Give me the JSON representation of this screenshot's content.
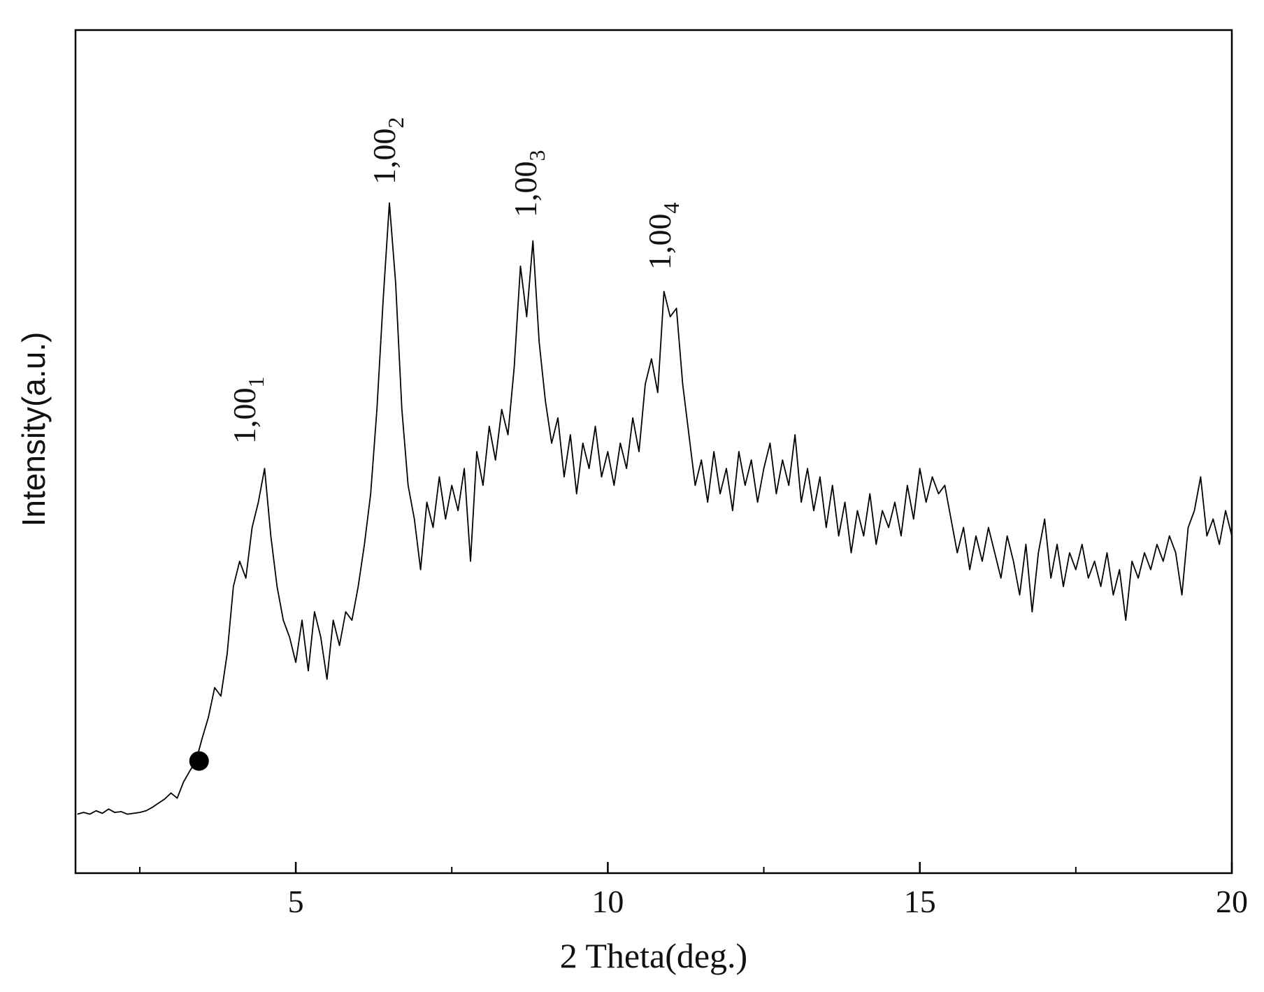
{
  "chart_data": {
    "type": "line",
    "xlabel": "2 Theta(deg.)",
    "ylabel": "Intensity(a.u.)",
    "xlim": [
      1.47,
      20
    ],
    "ylim": [
      0,
      100
    ],
    "xticks": [
      5,
      10,
      15,
      20
    ],
    "xminor_ticks": [
      2.5,
      7.5,
      12.5,
      17.5
    ],
    "color": "#000000",
    "x": [
      1.5,
      1.6,
      1.7,
      1.8,
      1.9,
      2.0,
      2.1,
      2.2,
      2.3,
      2.4,
      2.5,
      2.6,
      2.7,
      2.8,
      2.9,
      3.0,
      3.1,
      3.2,
      3.3,
      3.4,
      3.5,
      3.6,
      3.7,
      3.8,
      3.9,
      4.0,
      4.1,
      4.2,
      4.3,
      4.4,
      4.5,
      4.6,
      4.7,
      4.8,
      4.9,
      5.0,
      5.1,
      5.2,
      5.3,
      5.4,
      5.5,
      5.6,
      5.7,
      5.8,
      5.9,
      6.0,
      6.1,
      6.2,
      6.3,
      6.4,
      6.5,
      6.6,
      6.7,
      6.8,
      6.9,
      7.0,
      7.1,
      7.2,
      7.3,
      7.4,
      7.5,
      7.6,
      7.7,
      7.8,
      7.9,
      8.0,
      8.1,
      8.2,
      8.3,
      8.4,
      8.5,
      8.6,
      8.7,
      8.8,
      8.9,
      9.0,
      9.1,
      9.2,
      9.3,
      9.4,
      9.5,
      9.6,
      9.7,
      9.8,
      9.9,
      10.0,
      10.1,
      10.2,
      10.3,
      10.4,
      10.5,
      10.6,
      10.7,
      10.8,
      10.9,
      11.0,
      11.1,
      11.2,
      11.3,
      11.4,
      11.5,
      11.6,
      11.7,
      11.8,
      11.9,
      12.0,
      12.1,
      12.2,
      12.3,
      12.4,
      12.5,
      12.6,
      12.7,
      12.8,
      12.9,
      13.0,
      13.1,
      13.2,
      13.3,
      13.4,
      13.5,
      13.6,
      13.7,
      13.8,
      13.9,
      14.0,
      14.1,
      14.2,
      14.3,
      14.4,
      14.5,
      14.6,
      14.7,
      14.8,
      14.9,
      15.0,
      15.1,
      15.2,
      15.3,
      15.4,
      15.5,
      15.6,
      15.7,
      15.8,
      15.9,
      16.0,
      16.1,
      16.2,
      16.3,
      16.4,
      16.5,
      16.6,
      16.7,
      16.8,
      16.9,
      17.0,
      17.1,
      17.2,
      17.3,
      17.4,
      17.5,
      17.6,
      17.7,
      17.8,
      17.9,
      18.0,
      18.1,
      18.2,
      18.3,
      18.4,
      18.5,
      18.6,
      18.7,
      18.8,
      18.9,
      19.0,
      19.1,
      19.2,
      19.3,
      19.4,
      19.5,
      19.6,
      19.7,
      19.8,
      19.9,
      20.0
    ],
    "values": [
      7,
      7.2,
      7,
      7.4,
      7.1,
      7.6,
      7.2,
      7.3,
      7,
      7.1,
      7.2,
      7.4,
      7.8,
      8.3,
      8.8,
      9.5,
      8.9,
      10.8,
      12.1,
      13.3,
      16,
      18.5,
      22,
      21,
      26,
      34,
      37,
      35,
      41,
      44,
      48,
      40,
      34,
      30,
      28,
      25,
      30,
      24,
      31,
      28,
      23,
      30,
      27,
      31,
      30,
      34,
      39,
      45,
      55,
      68,
      79.5,
      70,
      55,
      46,
      42,
      36,
      44,
      41,
      47,
      42,
      46,
      43,
      48,
      37,
      50,
      46,
      53,
      49,
      55,
      52,
      60,
      72,
      66,
      75,
      63,
      56,
      51,
      54,
      47,
      52,
      45,
      51,
      48,
      53,
      47,
      50,
      46,
      51,
      48,
      54,
      50,
      58,
      61,
      57,
      69,
      66,
      67,
      58,
      52,
      46,
      49,
      44,
      50,
      45,
      48,
      43,
      50,
      46,
      49,
      44,
      48,
      51,
      45,
      49,
      46,
      52,
      44,
      48,
      43,
      47,
      41,
      46,
      40,
      44,
      38,
      43,
      40,
      45,
      39,
      43,
      41,
      44,
      40,
      46,
      42,
      48,
      44,
      47,
      45,
      46,
      42,
      38,
      41,
      36,
      40,
      37,
      41,
      38,
      35,
      40,
      37,
      33,
      39,
      31,
      38,
      42,
      35,
      39,
      34,
      38,
      36,
      39,
      35,
      37,
      34,
      38,
      33,
      36,
      30,
      37,
      35,
      38,
      36,
      39,
      37,
      40,
      38,
      33,
      41,
      43,
      47,
      40,
      42,
      39,
      43,
      40
    ],
    "marker": {
      "x": 3.45,
      "y": 13.3
    },
    "annotations": [
      {
        "text": "1,00",
        "sub": "1"
      },
      {
        "text": "1,00",
        "sub": "2"
      },
      {
        "text": "1,00",
        "sub": "3"
      },
      {
        "text": "1,00",
        "sub": "4"
      }
    ]
  }
}
